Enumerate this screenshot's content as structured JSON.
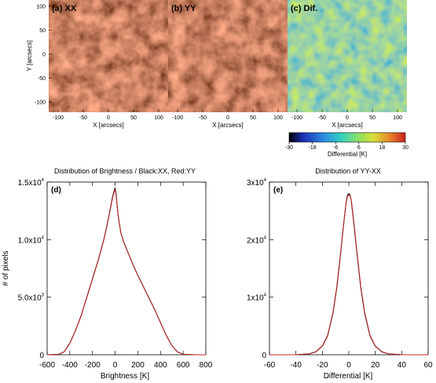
{
  "panels": {
    "a": {
      "label": "(a) XX"
    },
    "b": {
      "label": "(b) YY"
    },
    "c": {
      "label": "(c) Dif."
    }
  },
  "maps": {
    "ylabel": "Y [arcsecs]",
    "xlabel": "X [arcsecs]",
    "xticks": [
      "-100",
      "-50",
      "0",
      "50",
      "100"
    ],
    "yticks": [
      "100",
      "50",
      "0",
      "-50",
      "-100"
    ],
    "colorbar": {
      "label": "Differential [K]",
      "ticks": [
        "-30",
        "-18",
        "-6",
        "6",
        "18",
        "30"
      ],
      "colors": [
        "#000000",
        "#1c2fb7",
        "#2b8ee0",
        "#34d1c0",
        "#8fe060",
        "#d7e03a",
        "#e88a2a",
        "#c8201e"
      ]
    }
  },
  "chart_data": [
    {
      "type": "line",
      "panel": "(d)",
      "title": "Distribution of Brightness / Black:XX, Red:YY",
      "xlabel": "Brightness [K]",
      "ylabel": "# of pixels",
      "xlim": [
        -600,
        800
      ],
      "ylim": [
        0,
        15000
      ],
      "xticks": [
        "-600",
        "-400",
        "-200",
        "0",
        "200",
        "400",
        "600",
        "800"
      ],
      "yticks": [
        {
          "base": "0",
          "exp": ""
        },
        {
          "base": "5.0x10",
          "exp": "3"
        },
        {
          "base": "1.0x10",
          "exp": "4"
        },
        {
          "base": "1.5x10",
          "exp": "4"
        }
      ],
      "series": [
        {
          "color": "#000000",
          "x": [
            -600,
            -500,
            -450,
            -400,
            -350,
            -300,
            -250,
            -200,
            -150,
            -100,
            -75,
            -50,
            -25,
            -10,
            0,
            10,
            25,
            50,
            75,
            100,
            150,
            200,
            250,
            300,
            350,
            400,
            450,
            500,
            550,
            600,
            700,
            800
          ],
          "y": [
            0,
            30,
            250,
            1000,
            2100,
            3400,
            5000,
            6600,
            8200,
            10000,
            11100,
            12300,
            13600,
            14200,
            14500,
            13800,
            12200,
            10600,
            9800,
            9200,
            8000,
            6900,
            5900,
            4900,
            3900,
            2800,
            1700,
            800,
            250,
            40,
            0,
            0
          ]
        },
        {
          "color": "#d02020",
          "x": [
            -600,
            -500,
            -450,
            -400,
            -350,
            -300,
            -250,
            -200,
            -150,
            -100,
            -75,
            -50,
            -25,
            -10,
            0,
            10,
            25,
            50,
            75,
            100,
            150,
            200,
            250,
            300,
            350,
            400,
            450,
            500,
            550,
            600,
            700,
            800
          ],
          "y": [
            0,
            30,
            240,
            980,
            2080,
            3380,
            4980,
            6560,
            8160,
            9960,
            11060,
            12260,
            13520,
            14100,
            14350,
            13700,
            12150,
            10580,
            9780,
            9180,
            7980,
            6880,
            5880,
            4880,
            3880,
            2780,
            1690,
            790,
            245,
            40,
            0,
            0
          ]
        }
      ]
    },
    {
      "type": "line",
      "panel": "(e)",
      "title": "Distribution of YY-XX",
      "xlabel": "Differential [K]",
      "ylabel": "",
      "xlim": [
        -60,
        60
      ],
      "ylim": [
        0,
        30000
      ],
      "xticks": [
        "-60",
        "-40",
        "-20",
        "0",
        "20",
        "40",
        "60"
      ],
      "yticks": [
        {
          "base": "0",
          "exp": ""
        },
        {
          "base": "1x10",
          "exp": "4"
        },
        {
          "base": "2x10",
          "exp": "4"
        },
        {
          "base": "3x10",
          "exp": "4"
        }
      ],
      "series": [
        {
          "color": "#000000",
          "x": [
            -60,
            -40,
            -30,
            -25,
            -20,
            -16,
            -12,
            -9,
            -6,
            -4,
            -2,
            -1,
            0,
            1,
            2,
            4,
            6,
            9,
            12,
            16,
            20,
            25,
            30,
            40,
            60
          ],
          "y": [
            0,
            0,
            150,
            500,
            1500,
            3300,
            7200,
            11800,
            18000,
            22500,
            26500,
            27700,
            28000,
            27700,
            26500,
            22500,
            18000,
            11800,
            7200,
            3300,
            1500,
            500,
            150,
            0,
            0
          ]
        },
        {
          "color": "#d02020",
          "x": [
            -60,
            -40,
            -30,
            -25,
            -20,
            -16,
            -12,
            -9,
            -6,
            -4,
            -2,
            -1,
            0,
            1,
            2,
            4,
            6,
            9,
            12,
            16,
            20,
            25,
            30,
            40,
            60
          ],
          "y": [
            0,
            0,
            160,
            520,
            1550,
            3400,
            7350,
            12000,
            18200,
            22600,
            26400,
            27500,
            27800,
            27600,
            26600,
            22700,
            18200,
            12000,
            7400,
            3400,
            1550,
            520,
            160,
            0,
            0
          ]
        }
      ]
    }
  ]
}
